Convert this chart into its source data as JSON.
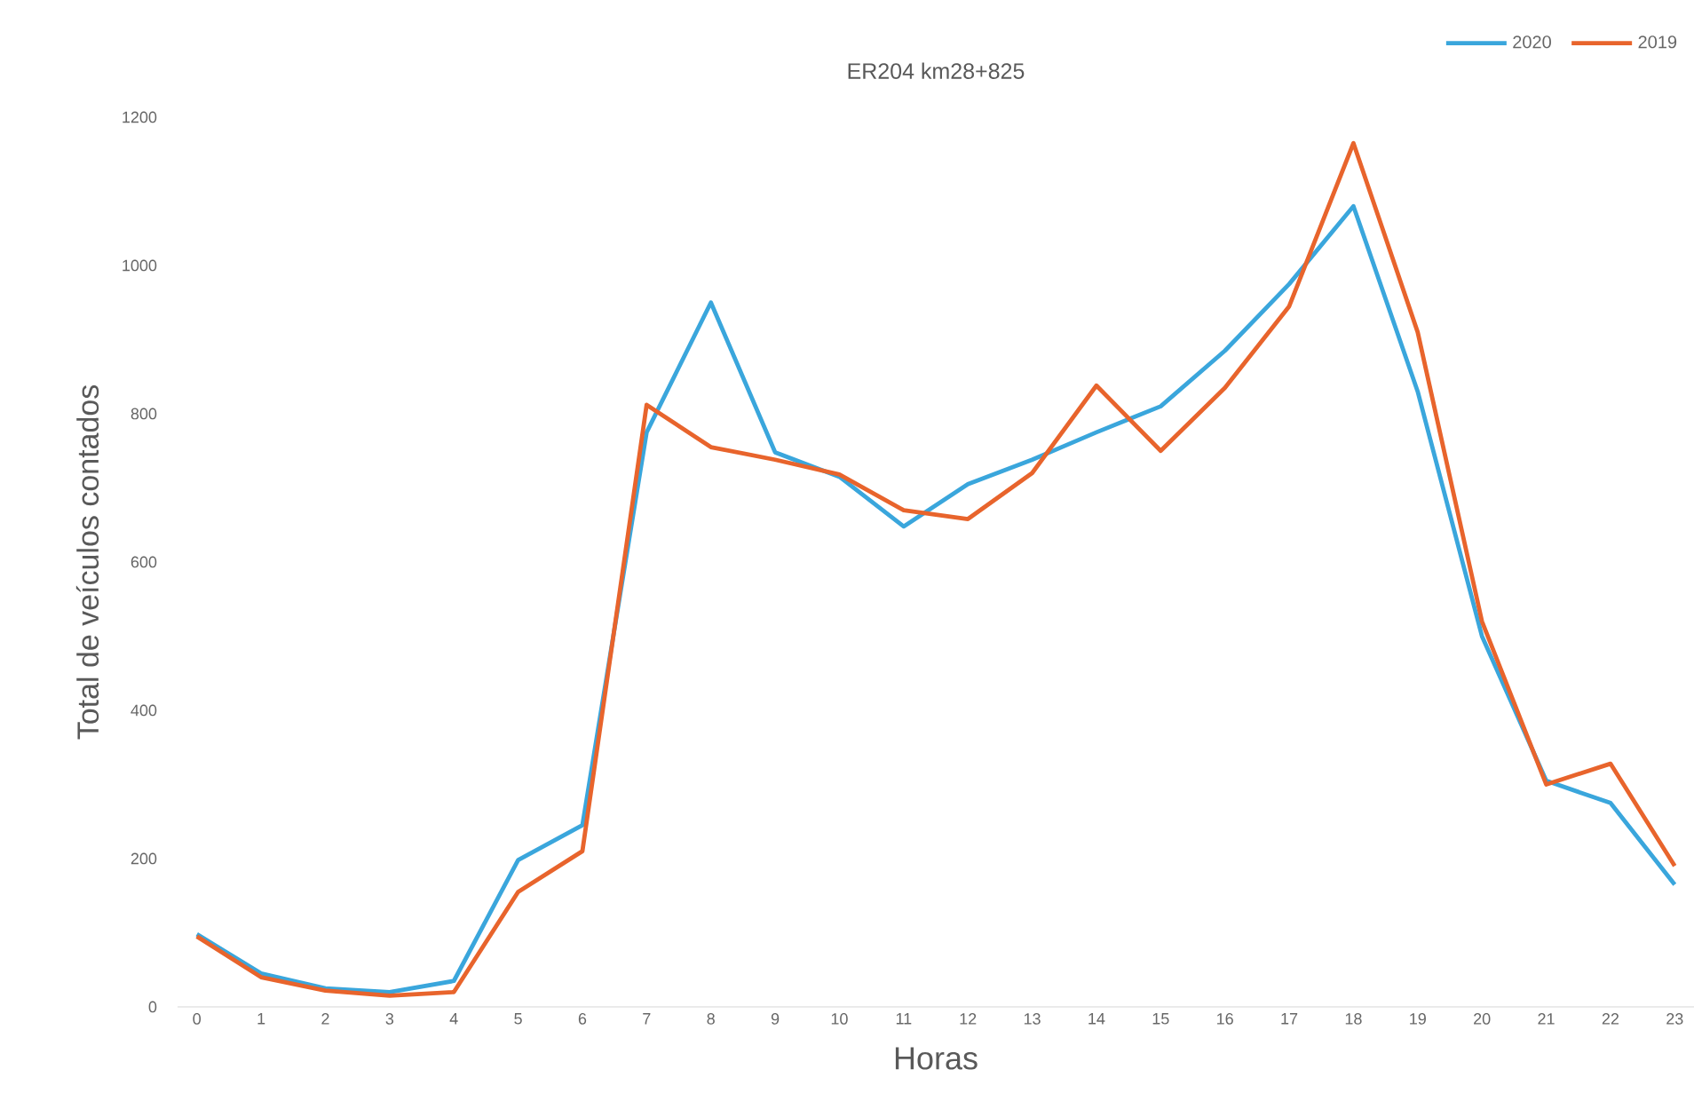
{
  "chart_data": {
    "type": "line",
    "title": "ER204  km28+825",
    "xlabel": "Horas",
    "ylabel": "Total de veículos contados",
    "categories": [
      "0",
      "1",
      "2",
      "3",
      "4",
      "5",
      "6",
      "7",
      "8",
      "9",
      "10",
      "11",
      "12",
      "13",
      "14",
      "15",
      "16",
      "17",
      "18",
      "19",
      "20",
      "21",
      "22",
      "23"
    ],
    "ylim": [
      0,
      1200
    ],
    "yticks": [
      0,
      200,
      400,
      600,
      800,
      1000,
      1200
    ],
    "legend": "top right",
    "grid": false,
    "marker": "none",
    "line_style": "solid",
    "series": [
      {
        "name": "2020",
        "color": "#3aa6dc",
        "values": [
          98,
          45,
          25,
          20,
          35,
          198,
          245,
          775,
          950,
          748,
          715,
          648,
          705,
          738,
          775,
          810,
          885,
          975,
          1080,
          830,
          500,
          305,
          275,
          165
        ]
      },
      {
        "name": "2019",
        "color": "#e8642c",
        "values": [
          95,
          40,
          22,
          15,
          20,
          155,
          210,
          812,
          755,
          738,
          718,
          670,
          658,
          720,
          838,
          750,
          835,
          945,
          1165,
          910,
          520,
          300,
          328,
          190
        ]
      }
    ]
  }
}
